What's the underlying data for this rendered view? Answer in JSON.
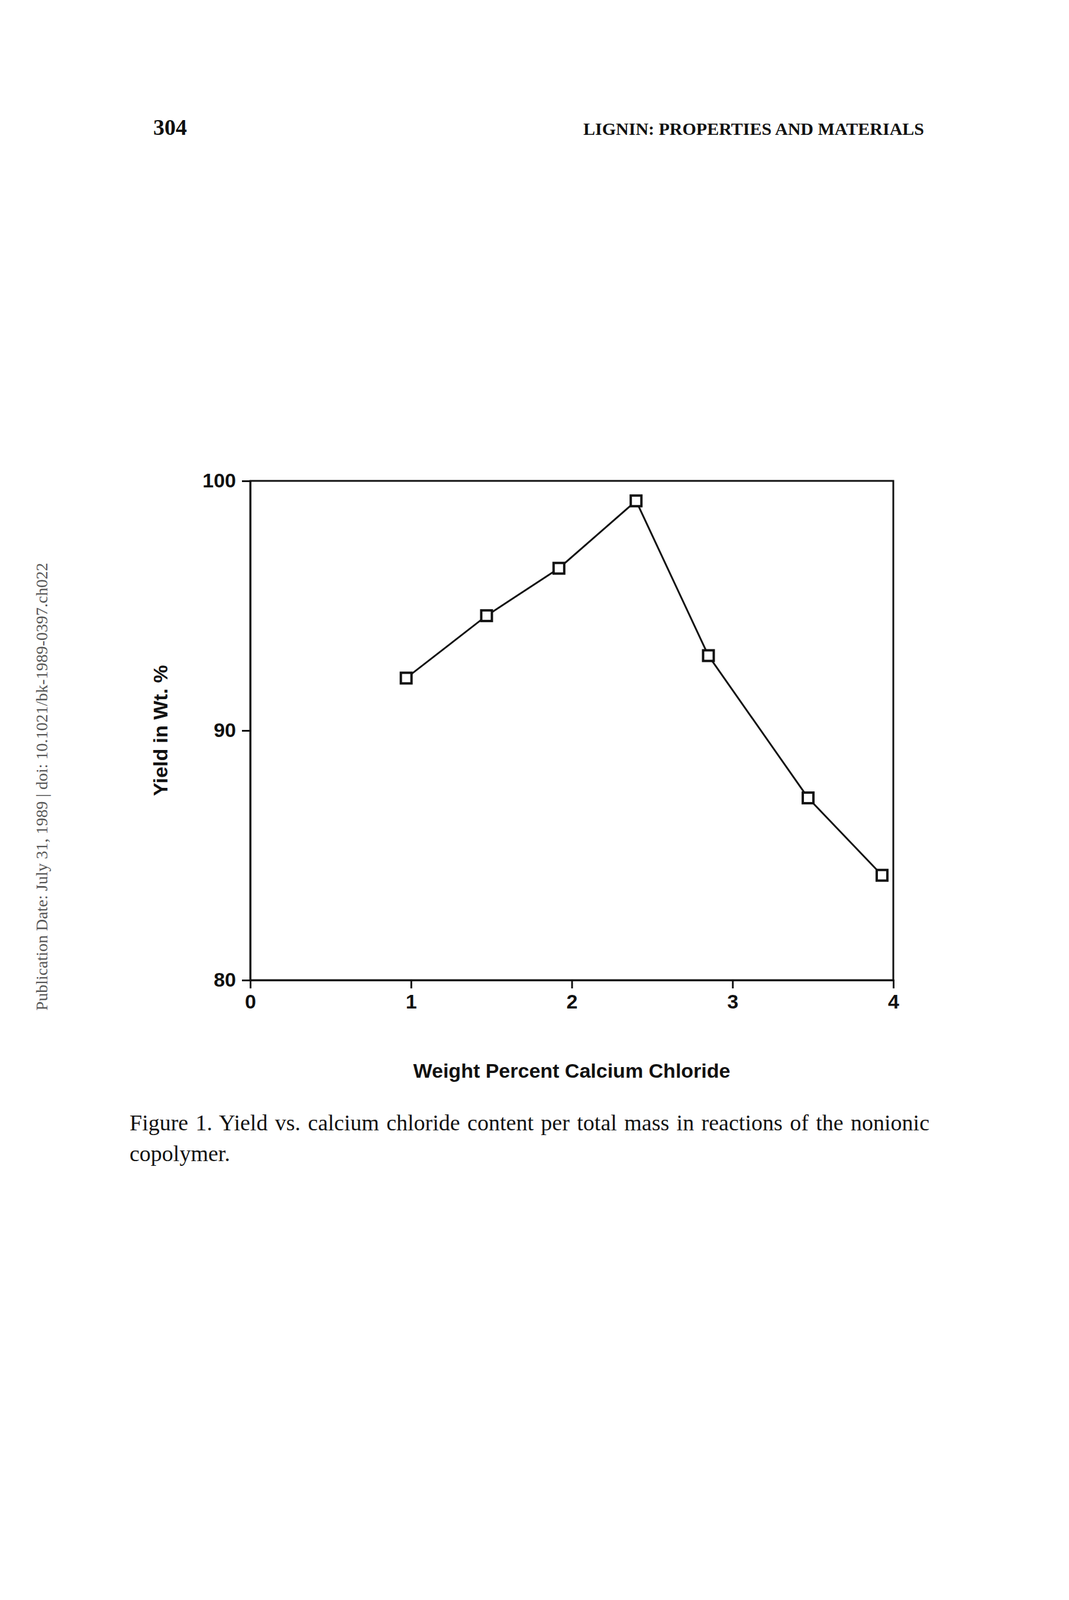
{
  "page_number": "304",
  "running_head": "LIGNIN: PROPERTIES AND MATERIALS",
  "side_note": "Publication Date: July 31, 1989 | doi: 10.1021/bk-1989-0397.ch022",
  "chart_data": {
    "type": "line",
    "caption": "Figure 1. Yield vs. calcium chloride content per total mass in reactions of the nonionic copolymer.",
    "x_label": "Weight Percent Calcium Chloride",
    "y_label": "Yield in Wt. %",
    "x": [
      0.97,
      1.47,
      1.92,
      2.4,
      2.85,
      3.47,
      3.93
    ],
    "values": [
      92.1,
      94.6,
      96.5,
      99.2,
      93.0,
      87.3,
      84.2
    ],
    "color": "#111111",
    "marker": "square",
    "line_style": "solid",
    "xlim": [
      0,
      4
    ],
    "xticks": [
      0,
      1,
      2,
      3,
      4
    ],
    "ylim": [
      80,
      100
    ],
    "yticks": [
      80,
      90,
      100
    ],
    "grid": false
  }
}
